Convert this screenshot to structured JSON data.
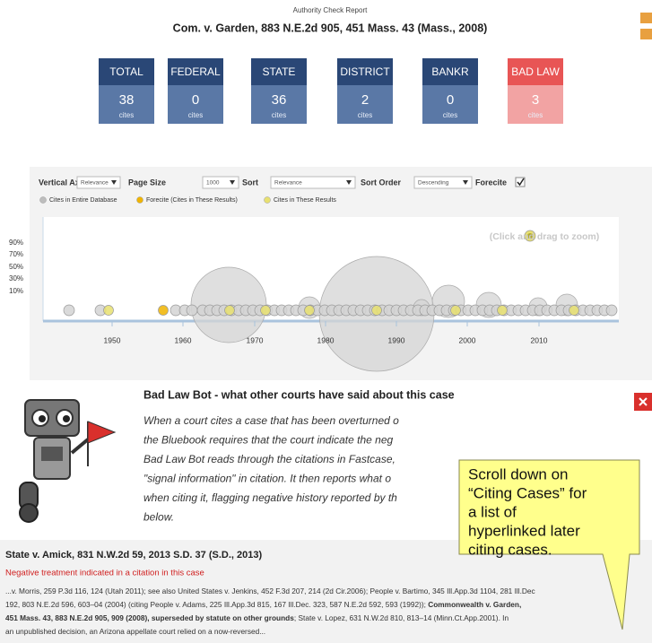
{
  "header": {
    "subtitle": "Authority Check Report",
    "title": "Com. v. Garden, 883 N.E.2d 905, 451 Mass. 43 (Mass., 2008)"
  },
  "summary": [
    {
      "label": "TOTAL",
      "count": 38,
      "unit": "cites"
    },
    {
      "label": "FEDERAL",
      "count": 0,
      "unit": "cites"
    },
    {
      "label": "STATE",
      "count": 36,
      "unit": "cites"
    },
    {
      "label": "DISTRICT",
      "count": 2,
      "unit": "cites"
    },
    {
      "label": "BANKR",
      "count": 0,
      "unit": "cites"
    },
    {
      "label": "BAD LAW",
      "count": 3,
      "unit": "cites",
      "alert": true
    }
  ],
  "controls": {
    "vertical_axis": {
      "label": "Vertical Axis",
      "value": "Relevance"
    },
    "page_size": {
      "label": "Page Size",
      "value": "1000"
    },
    "sort": {
      "label": "Sort",
      "value": "Relevance"
    },
    "sort_order": {
      "label": "Sort Order",
      "value": "Descending"
    },
    "forecite": {
      "label": "Forecite",
      "checked": true
    }
  },
  "legend": [
    {
      "label": "Cites in Entire Database",
      "color": "#bdbdbd"
    },
    {
      "label": "Forecite (Cites in These Results)",
      "color": "#f0b400"
    },
    {
      "label": "Cites in These Results",
      "color": "#e8e070"
    }
  ],
  "timeline": {
    "hint": "(Click and drag to zoom)",
    "y_labels": [
      "90%",
      "70%",
      "50%",
      "30%",
      "10%"
    ],
    "x_labels": [
      "1950",
      "1960",
      "1970",
      "1980",
      "1990",
      "2000",
      "2010"
    ]
  },
  "bad_law_bot": {
    "title": "Bad Law Bot - what other courts have said about this case",
    "lines": [
      "When a court cites a case that has been overturned o",
      "the Bluebook requires that the court indicate the neg",
      "Bad Law Bot reads through the citations in Fastcase,",
      "\"signal information\" in citation. It then reports what o",
      "when citing it, flagging negative history reported by th",
      "below."
    ]
  },
  "result": {
    "title": "State v. Amick, 831 N.W.2d 59, 2013 S.D. 37 (S.D., 2013)",
    "warning": "Negative treatment indicated in a citation in this case",
    "excerpt_lines": [
      [
        {
          "text": "...v. Morris, 259 P.3d 116, 124 (Utah 2011); see also United States v. Jenkins, 452 F.3d 207, 214 (2d Cir.2006); People v. Bartimo, 345 Ill.App.3d 1104, 281 Ill.Dec",
          "bold": false
        }
      ],
      [
        {
          "text": "192, 803 N.E.2d 596, 603–04 (2004) (citing People v. Adams, 225 Ill.App.3d 815, 167 Ill.Dec. 323, 587 N.E.2d 592, 593 (1992)); ",
          "bold": false
        },
        {
          "text": "Commonwealth v. Garden,",
          "bold": true
        }
      ],
      [
        {
          "text": "451 Mass. 43, 883 N.E.2d 905, 909 (2008), superseded by statute on other grounds",
          "bold": true
        },
        {
          "text": "; State v. Lopez, 631 N.W.2d 810, 813–14 (Minn.Ct.App.2001).   In",
          "bold": false
        }
      ],
      [
        {
          "text": "an unpublished decision, an Arizona appellate court relied on a now-reversed...",
          "bold": false
        }
      ]
    ]
  },
  "callout": {
    "lines": [
      "Scroll down on",
      "“Citing Cases” for",
      "a list of",
      "hyperlinked later",
      "citing cases."
    ]
  }
}
